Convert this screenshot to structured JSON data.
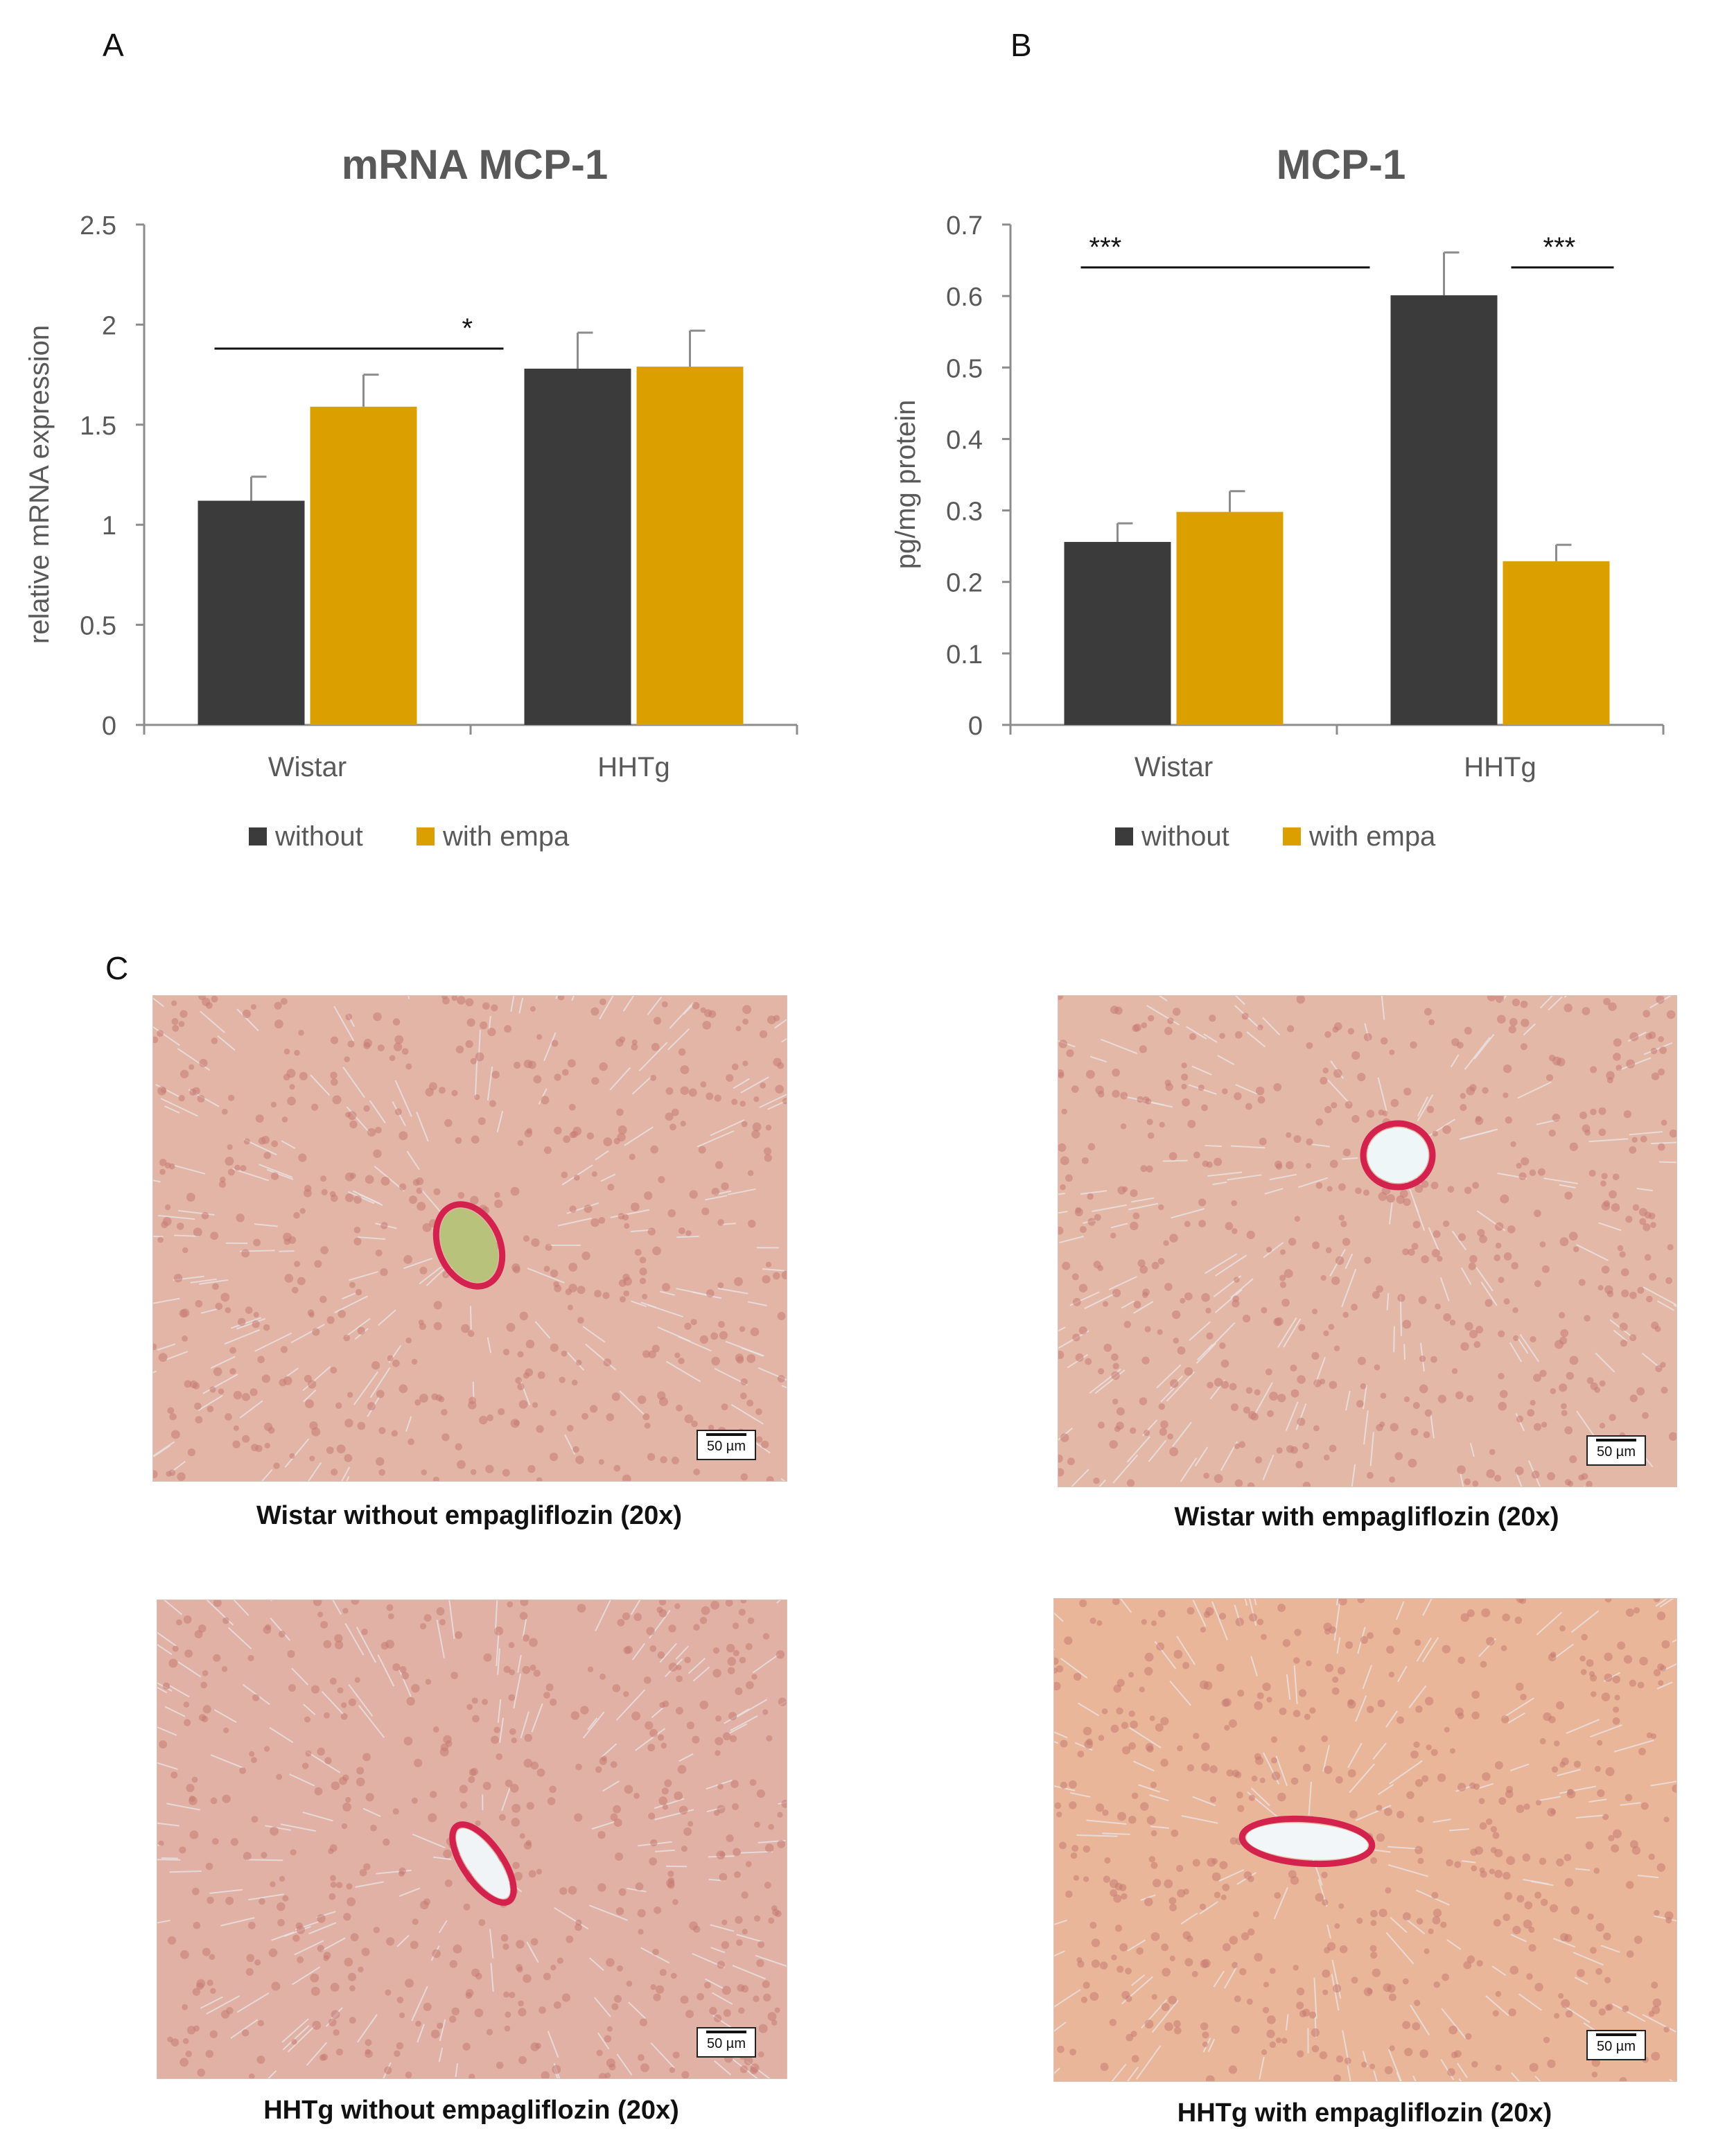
{
  "panels": {
    "a": "A",
    "b": "B",
    "c": "C"
  },
  "colors": {
    "without": "#3b3b3b",
    "with_empa": "#dba000",
    "axis": "#8c8c8c",
    "text": "#595959"
  },
  "chart_data": [
    {
      "id": "A",
      "type": "bar",
      "title": "mRNA MCP-1",
      "xlabel": "",
      "ylabel": "relative mRNA expression",
      "categories": [
        "Wistar",
        "HHTg"
      ],
      "ylim": [
        0,
        2.5
      ],
      "yticks": [
        "0",
        "0.5",
        "1",
        "1.5",
        "2",
        "2.5"
      ],
      "series": [
        {
          "name": "without",
          "values": [
            1.12,
            1.78
          ],
          "errors": [
            0.12,
            0.18
          ]
        },
        {
          "name": "with empa",
          "values": [
            1.59,
            1.79
          ],
          "errors": [
            0.16,
            0.18
          ]
        }
      ],
      "legend_position": "bottom",
      "grid": false,
      "annotations": [
        {
          "text": "*",
          "from": {
            "category": 0,
            "series": 0
          },
          "to": {
            "category": 1,
            "series": 0
          },
          "y": 1.88
        }
      ]
    },
    {
      "id": "B",
      "type": "bar",
      "title": "MCP-1",
      "xlabel": "",
      "ylabel": "pg/mg protein",
      "categories": [
        "Wistar",
        "HHTg"
      ],
      "ylim": [
        0,
        0.7
      ],
      "yticks": [
        "0",
        "0.1",
        "0.2",
        "0.3",
        "0.4",
        "0.5",
        "0.6",
        "0.7"
      ],
      "series": [
        {
          "name": "without",
          "values": [
            0.256,
            0.601
          ],
          "errors": [
            0.026,
            0.06
          ]
        },
        {
          "name": "with empa",
          "values": [
            0.298,
            0.229
          ],
          "errors": [
            0.029,
            0.023
          ]
        }
      ],
      "legend_position": "bottom",
      "grid": false,
      "annotations": [
        {
          "text": "***",
          "from": {
            "category": 0,
            "series": 0
          },
          "to": {
            "category": 1,
            "series": 0
          },
          "y": 0.64
        },
        {
          "text": "***",
          "from": {
            "category": 1,
            "series": 1
          },
          "to": {
            "category": 1,
            "series": 1
          },
          "y": 0.64
        }
      ]
    }
  ],
  "micrographs": [
    {
      "caption": "Wistar without empagliflozin (20x)",
      "scale": "50 µm"
    },
    {
      "caption": "Wistar with empagliflozin (20x)",
      "scale": "50 µm"
    },
    {
      "caption": "HHTg without empagliflozin (20x)",
      "scale": "50 µm"
    },
    {
      "caption": "HHTg with empagliflozin (20x)",
      "scale": "50 µm"
    }
  ]
}
